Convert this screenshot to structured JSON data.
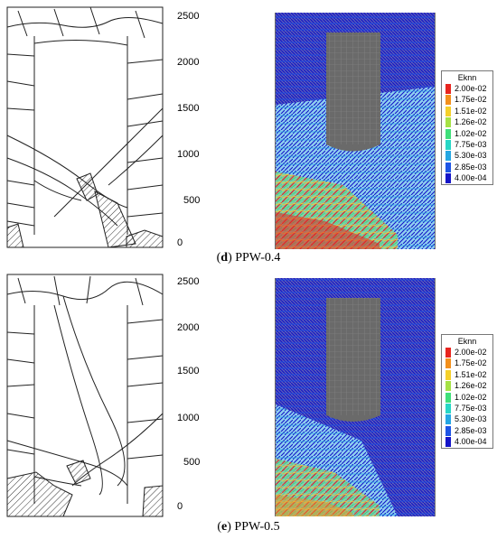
{
  "panels": [
    {
      "id": "d",
      "caption_letter": "d",
      "caption_text": ") PPW-0.4",
      "axis_ticks": [
        "2500",
        "2000",
        "1500",
        "1000",
        "500",
        "0"
      ],
      "legend": {
        "title": "Eknn",
        "entries": [
          {
            "label": "2.00e-02",
            "color": "#e8251f"
          },
          {
            "label": "1.75e-02",
            "color": "#f3901c"
          },
          {
            "label": "1.51e-02",
            "color": "#f5d02a"
          },
          {
            "label": "1.26e-02",
            "color": "#a6e245"
          },
          {
            "label": "1.02e-02",
            "color": "#3fe07a"
          },
          {
            "label": "7.75e-03",
            "color": "#27d7c6"
          },
          {
            "label": "5.30e-03",
            "color": "#25a7e3"
          },
          {
            "label": "2.85e-03",
            "color": "#1e55e6"
          },
          {
            "label": "4.00e-04",
            "color": "#1414c8"
          }
        ]
      }
    },
    {
      "id": "e",
      "caption_letter": "e",
      "caption_text": ") PPW-0.5",
      "axis_ticks": [
        "2500",
        "2000",
        "1500",
        "1000",
        "500",
        "0"
      ],
      "legend": {
        "title": "Eknn",
        "entries": [
          {
            "label": "2.00e-02",
            "color": "#e8251f"
          },
          {
            "label": "1.75e-02",
            "color": "#f3901c"
          },
          {
            "label": "1.51e-02",
            "color": "#f5d02a"
          },
          {
            "label": "1.26e-02",
            "color": "#a6e245"
          },
          {
            "label": "1.02e-02",
            "color": "#3fe07a"
          },
          {
            "label": "7.75e-03",
            "color": "#27d7c6"
          },
          {
            "label": "5.30e-03",
            "color": "#25a7e3"
          },
          {
            "label": "2.85e-03",
            "color": "#1e55e6"
          },
          {
            "label": "4.00e-04",
            "color": "#1414c8"
          }
        ]
      }
    }
  ]
}
